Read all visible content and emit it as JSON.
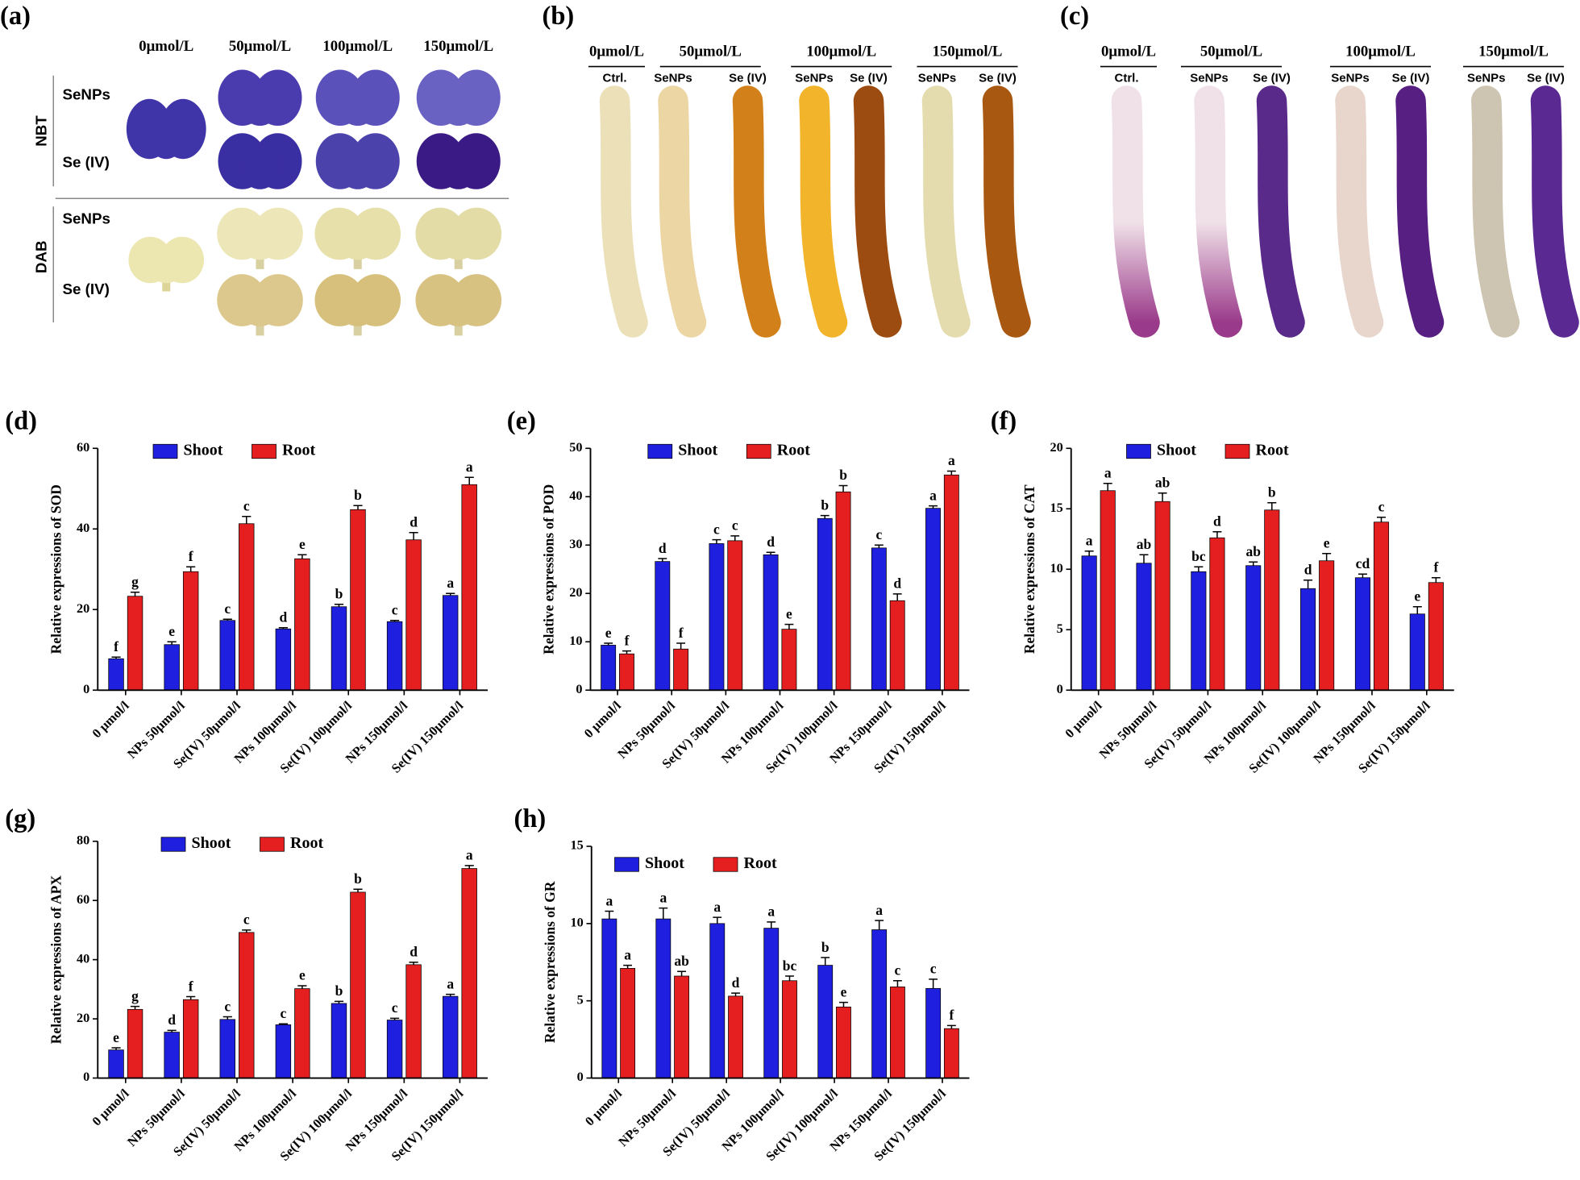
{
  "panels": [
    {
      "label": "(a)",
      "columns": [
        "0μmol/L",
        "50μmol/L",
        "100μmol/L",
        "150μmol/L"
      ],
      "rows": [
        {
          "group": "NBT",
          "items": [
            "SeNPs",
            "Se (IV)"
          ]
        },
        {
          "group": "DAB",
          "items": [
            "SeNPs",
            "Se (IV)"
          ]
        }
      ]
    },
    {
      "label": "(b)",
      "groups": [
        {
          "concentration": "0μmol/L",
          "treatments": [
            "Ctrl."
          ]
        },
        {
          "concentration": "50μmol/L",
          "treatments": [
            "SeNPs",
            "Se (IV)"
          ]
        },
        {
          "concentration": "100μmol/L",
          "treatments": [
            "SeNPs",
            "Se (IV)"
          ]
        },
        {
          "concentration": "150μmol/L",
          "treatments": [
            "SeNPs",
            "Se (IV)"
          ]
        }
      ]
    },
    {
      "label": "(c)",
      "groups": [
        {
          "concentration": "0μmol/L",
          "treatments": [
            "Ctrl."
          ]
        },
        {
          "concentration": "50μmol/L",
          "treatments": [
            "SeNPs",
            "Se (IV)"
          ]
        },
        {
          "concentration": "100μmol/L",
          "treatments": [
            "SeNPs",
            "Se (IV)"
          ]
        },
        {
          "concentration": "150μmol/L",
          "treatments": [
            "SeNPs",
            "Se (IV)"
          ]
        }
      ]
    }
  ],
  "chart_data": [
    {
      "type": "bar",
      "label": "(d)",
      "y_label": "Relative expressions of SOD",
      "categories": [
        "0 μmol/l",
        "NPs 50μmol/l",
        "Se(IV) 50μmol/l",
        "NPs 100μmol/l",
        "Se(IV) 100μmol/l",
        "NPs 150μmol/l",
        "Se(IV) 150μmol/l"
      ],
      "series": [
        {
          "name": "Shoot",
          "color": "#1f1fe0",
          "values": [
            7.8,
            11.3,
            17.3,
            15.2,
            20.7,
            17.0,
            23.5
          ],
          "errors": [
            0.4,
            0.7,
            0.3,
            0.3,
            0.6,
            0.3,
            0.5
          ],
          "significance": [
            "f",
            "e",
            "c",
            "d",
            "b",
            "c",
            "a"
          ]
        },
        {
          "name": "Root",
          "color": "#e51f1f",
          "values": [
            23.3,
            29.4,
            41.3,
            32.6,
            44.8,
            37.3,
            51.0
          ],
          "errors": [
            1.0,
            1.2,
            1.8,
            1.0,
            1.0,
            1.8,
            1.8
          ],
          "significance": [
            "g",
            "f",
            "c",
            "e",
            "b",
            "d",
            "a"
          ]
        }
      ],
      "ylim": [
        0,
        60
      ],
      "yticks": [
        0,
        20,
        40,
        60
      ]
    },
    {
      "type": "bar",
      "label": "(e)",
      "y_label": "Relative expressions of POD",
      "categories": [
        "0 μmol/l",
        "NPs 50μmol/l",
        "Se(IV) 50μmol/l",
        "NPs 100μmol/l",
        "Se(IV) 100μmol/l",
        "NPs 150μmol/l",
        "Se(IV) 150μmol/l"
      ],
      "series": [
        {
          "name": "Shoot",
          "color": "#1f1fe0",
          "values": [
            9.3,
            26.6,
            30.3,
            28.0,
            35.5,
            29.4,
            37.6
          ],
          "errors": [
            0.4,
            0.6,
            0.8,
            0.5,
            0.6,
            0.6,
            0.5
          ],
          "significance": [
            "e",
            "d",
            "c",
            "d",
            "b",
            "c",
            "a"
          ]
        },
        {
          "name": "Root",
          "color": "#e51f1f",
          "values": [
            7.5,
            8.5,
            30.9,
            12.6,
            41.0,
            18.5,
            44.5
          ],
          "errors": [
            0.6,
            1.2,
            1.0,
            1.0,
            1.3,
            1.4,
            0.8
          ],
          "significance": [
            "f",
            "f",
            "c",
            "e",
            "b",
            "d",
            "a"
          ]
        }
      ],
      "ylim": [
        0,
        50
      ],
      "yticks": [
        0,
        10,
        20,
        30,
        40,
        50
      ]
    },
    {
      "type": "bar",
      "label": "(f)",
      "y_label": "Relative expressions of CAT",
      "categories": [
        "0 μmol/l",
        "NPs 50μmol/l",
        "Se(IV) 50μmol/l",
        "NPs 100μmol/l",
        "Se(IV) 100μmol/l",
        "NPs 150μmol/l",
        "Se(IV) 150μmol/l"
      ],
      "series": [
        {
          "name": "Shoot",
          "color": "#1f1fe0",
          "values": [
            11.1,
            10.5,
            9.8,
            10.3,
            8.4,
            9.3,
            6.3
          ],
          "errors": [
            0.4,
            0.7,
            0.4,
            0.3,
            0.7,
            0.3,
            0.6
          ],
          "significance": [
            "a",
            "ab",
            "bc",
            "ab",
            "d",
            "cd",
            "e"
          ]
        },
        {
          "name": "Root",
          "color": "#e51f1f",
          "values": [
            16.5,
            15.6,
            12.6,
            14.9,
            10.7,
            13.9,
            8.9
          ],
          "errors": [
            0.6,
            0.7,
            0.5,
            0.6,
            0.6,
            0.4,
            0.4
          ],
          "significance": [
            "a",
            "ab",
            "d",
            "b",
            "e",
            "c",
            "f"
          ]
        }
      ],
      "ylim": [
        0,
        20
      ],
      "yticks": [
        0,
        5,
        10,
        15,
        20
      ]
    },
    {
      "type": "bar",
      "label": "(g)",
      "y_label": "Relative expressions of APX",
      "categories": [
        "0 μmol/l",
        "NPs 50μmol/l",
        "Se(IV) 50μmol/l",
        "NPs 100μmol/l",
        "Se(IV) 100μmol/l",
        "NPs 150μmol/l",
        "Se(IV) 150μmol/l"
      ],
      "series": [
        {
          "name": "Shoot",
          "color": "#1f1fe0",
          "values": [
            9.5,
            15.5,
            19.8,
            18.0,
            25.2,
            19.6,
            27.6
          ],
          "errors": [
            0.7,
            0.6,
            0.9,
            0.3,
            0.7,
            0.6,
            0.7
          ],
          "significance": [
            "e",
            "d",
            "c",
            "c",
            "b",
            "c",
            "a"
          ]
        },
        {
          "name": "Root",
          "color": "#e51f1f",
          "values": [
            23.2,
            26.5,
            49.2,
            30.2,
            62.8,
            38.3,
            70.8
          ],
          "errors": [
            1.0,
            1.0,
            0.8,
            1.0,
            1.0,
            0.8,
            1.0
          ],
          "significance": [
            "g",
            "f",
            "c",
            "e",
            "b",
            "d",
            "a"
          ]
        }
      ],
      "ylim": [
        0,
        80
      ],
      "yticks": [
        0,
        20,
        40,
        60,
        80
      ]
    },
    {
      "type": "bar",
      "label": "(h)",
      "y_label": "Relative expressions of GR",
      "categories": [
        "0 μmol/l",
        "NPs 50μmol/l",
        "Se(IV) 50μmol/l",
        "NPs 100μmol/l",
        "Se(IV) 100μmol/l",
        "NPs 150μmol/l",
        "Se(IV) 150μmol/l"
      ],
      "series": [
        {
          "name": "Shoot",
          "color": "#1f1fe0",
          "values": [
            10.3,
            10.3,
            10.0,
            9.7,
            7.3,
            9.6,
            5.8
          ],
          "errors": [
            0.5,
            0.7,
            0.4,
            0.4,
            0.5,
            0.6,
            0.6
          ],
          "significance": [
            "a",
            "a",
            "a",
            "a",
            "b",
            "a",
            "c"
          ]
        },
        {
          "name": "Root",
          "color": "#e51f1f",
          "values": [
            7.1,
            6.6,
            5.3,
            6.3,
            4.6,
            5.9,
            3.2
          ],
          "errors": [
            0.2,
            0.3,
            0.2,
            0.3,
            0.3,
            0.4,
            0.2
          ],
          "significance": [
            "a",
            "ab",
            "d",
            "bc",
            "e",
            "c",
            "f"
          ]
        }
      ],
      "ylim": [
        0,
        15
      ],
      "yticks": [
        0,
        5,
        10,
        15
      ]
    }
  ]
}
